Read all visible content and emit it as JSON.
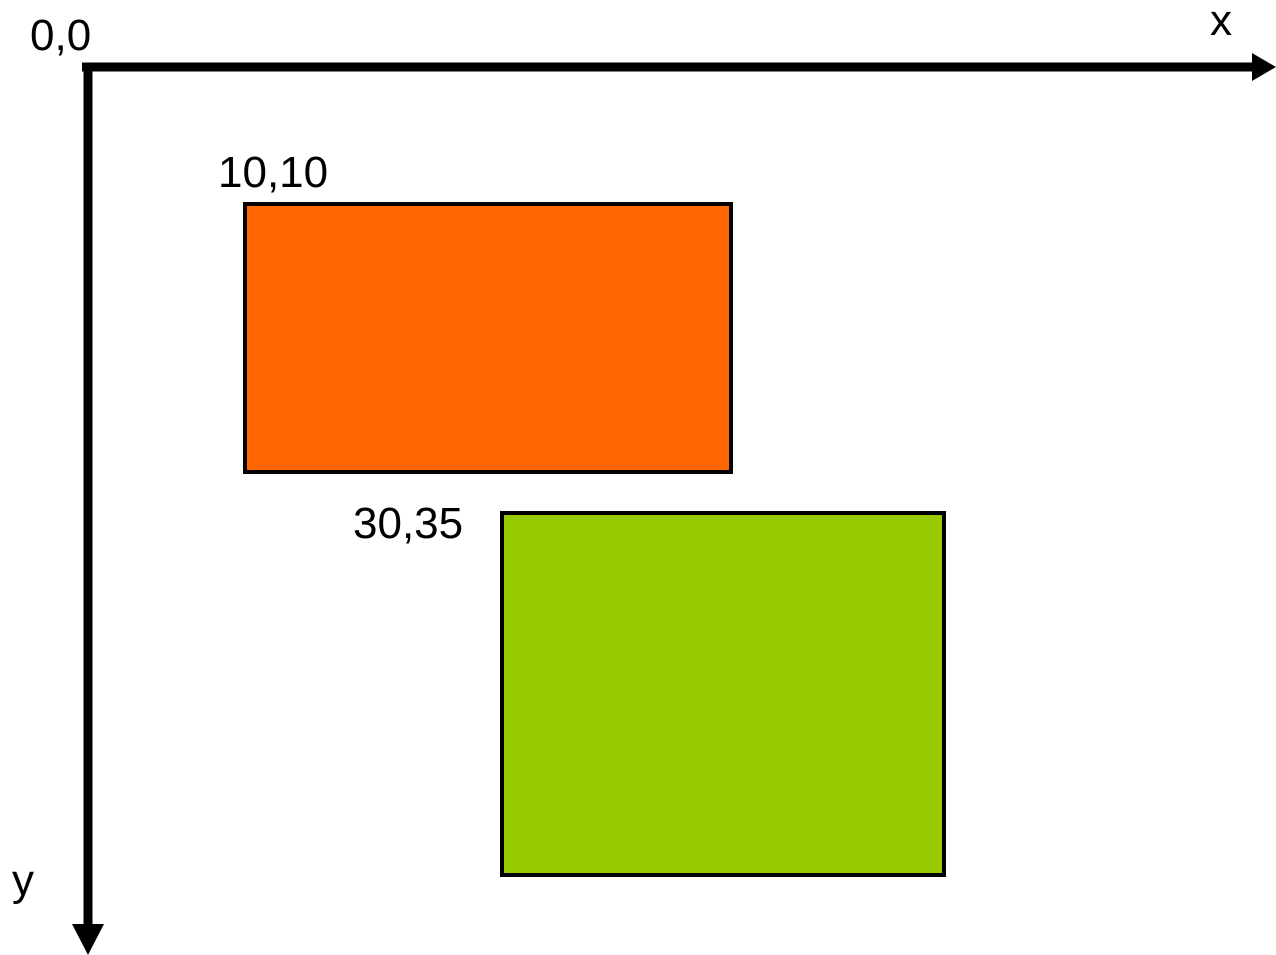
{
  "axes": {
    "origin_label": "0,0",
    "x_label": "x",
    "y_label": "y",
    "color": "#000000"
  },
  "rectangles": [
    {
      "corner_label": "10,10",
      "fill": "#FF6600",
      "stroke": "#000000"
    },
    {
      "corner_label": "30,35",
      "fill": "#99CC00",
      "stroke": "#000000"
    }
  ]
}
